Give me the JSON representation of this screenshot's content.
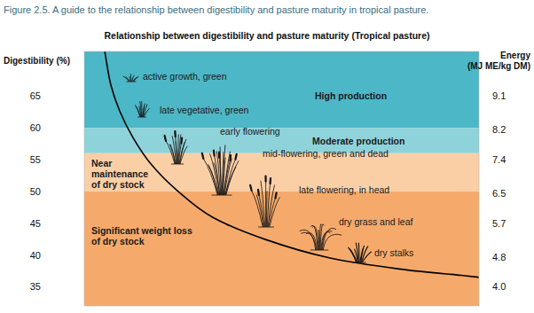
{
  "chart_data": {
    "type": "line",
    "caption": "Figure 2.5. A guide to the relationship between digestibility and pasture maturity in tropical pasture.",
    "title": "Relationship between digestibility and pasture maturity (Tropical pasture)",
    "ylabel": "Digestibility (%)",
    "y2label": "Energy (MJ ME/kg DM)",
    "x": [
      5.2,
      6.7,
      9.0,
      12.4,
      16.9,
      23.6,
      32.6,
      46.1,
      61.8,
      79.8,
      95.5,
      100
    ],
    "values": [
      72.0,
      66.8,
      62.6,
      58.4,
      54.3,
      50.1,
      45.9,
      42.4,
      39.6,
      37.8,
      36.8,
      36.5
    ],
    "color": "#000000",
    "xlim": [
      0,
      100
    ],
    "ylim": [
      32,
      72
    ],
    "yticks": [
      35,
      40,
      45,
      50,
      55,
      60,
      65
    ],
    "y2lim": [
      3.49,
      10.29
    ],
    "y2ticks": [
      {
        "value": 4,
        "label": "4.0"
      },
      4.8,
      5.7,
      6.5,
      7.4,
      8.2,
      9.1
    ],
    "bands": [
      {
        "label": "High production",
        "from": 60,
        "to": 72,
        "color": "#4cb7c6"
      },
      {
        "label": "Moderate production",
        "from": 56,
        "to": 60,
        "color": "#8fd3da"
      },
      {
        "label": "Near maintenance of dry stock",
        "from": 50,
        "to": 56,
        "color": "#fbcfa5"
      },
      {
        "label": "Significant weight loss of dry stock",
        "from": 32,
        "to": 50,
        "color": "#f5aa6b"
      }
    ],
    "annotations": [
      "active growth, green",
      "late vegetative, green",
      "early flowering",
      "mid-flowering, green and dead",
      "late flowering, in head",
      "dry grass and leaf",
      "dry stalks"
    ],
    "tick_labels": "y",
    "grid": false
  }
}
